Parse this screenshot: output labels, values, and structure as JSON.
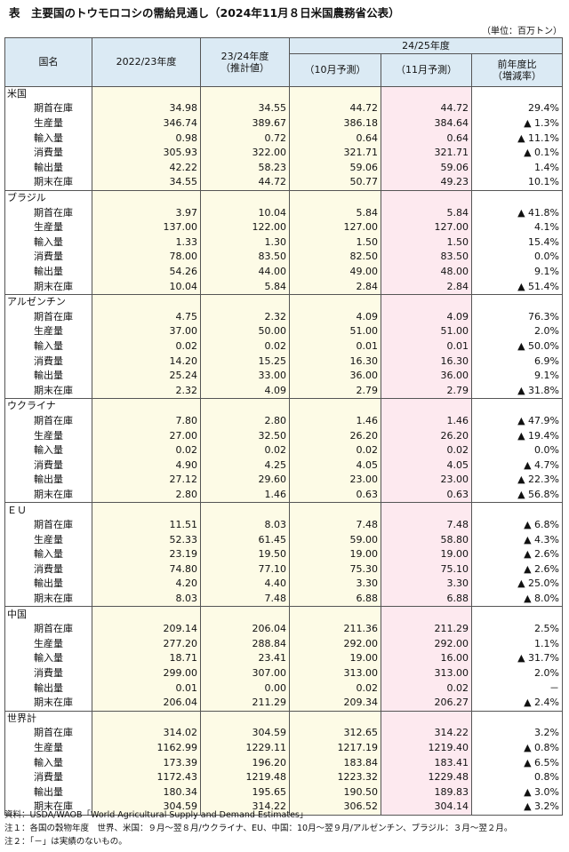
{
  "title": "表　主要国のトウモロコシの需給見通し（2024年11月８日米国農務省公表）",
  "unit": "（単位：百万トン）",
  "header": {
    "country": "国名",
    "y2223": "2022/23年度",
    "y2324": "23/24年度",
    "y2324_note": "（推計値）",
    "y2425": "24/25年度",
    "oct": "（10月予測）",
    "nov": "（11月予測）",
    "change": "前年度比",
    "change_note": "（増減率）"
  },
  "groups": [
    {
      "name": "米国",
      "rows": [
        [
          "期首在庫",
          "34.98",
          "34.55",
          "44.72",
          "44.72",
          "29.4%"
        ],
        [
          "生産量",
          "346.74",
          "389.67",
          "386.18",
          "384.64",
          "▲ 1.3%"
        ],
        [
          "輸入量",
          "0.98",
          "0.72",
          "0.64",
          "0.64",
          "▲ 11.1%"
        ],
        [
          "消費量",
          "305.93",
          "322.00",
          "321.71",
          "321.71",
          "▲ 0.1%"
        ],
        [
          "輸出量",
          "42.22",
          "58.23",
          "59.06",
          "59.06",
          "1.4%"
        ],
        [
          "期末在庫",
          "34.55",
          "44.72",
          "50.77",
          "49.23",
          "10.1%"
        ]
      ]
    },
    {
      "name": "ブラジル",
      "rows": [
        [
          "期首在庫",
          "3.97",
          "10.04",
          "5.84",
          "5.84",
          "▲ 41.8%"
        ],
        [
          "生産量",
          "137.00",
          "122.00",
          "127.00",
          "127.00",
          "4.1%"
        ],
        [
          "輸入量",
          "1.33",
          "1.30",
          "1.50",
          "1.50",
          "15.4%"
        ],
        [
          "消費量",
          "78.00",
          "83.50",
          "82.50",
          "83.50",
          "0.0%"
        ],
        [
          "輸出量",
          "54.26",
          "44.00",
          "49.00",
          "48.00",
          "9.1%"
        ],
        [
          "期末在庫",
          "10.04",
          "5.84",
          "2.84",
          "2.84",
          "▲ 51.4%"
        ]
      ]
    },
    {
      "name": "アルゼンチン",
      "rows": [
        [
          "期首在庫",
          "4.75",
          "2.32",
          "4.09",
          "4.09",
          "76.3%"
        ],
        [
          "生産量",
          "37.00",
          "50.00",
          "51.00",
          "51.00",
          "2.0%"
        ],
        [
          "輸入量",
          "0.02",
          "0.02",
          "0.01",
          "0.01",
          "▲ 50.0%"
        ],
        [
          "消費量",
          "14.20",
          "15.25",
          "16.30",
          "16.30",
          "6.9%"
        ],
        [
          "輸出量",
          "25.24",
          "33.00",
          "36.00",
          "36.00",
          "9.1%"
        ],
        [
          "期末在庫",
          "2.32",
          "4.09",
          "2.79",
          "2.79",
          "▲ 31.8%"
        ]
      ]
    },
    {
      "name": "ウクライナ",
      "rows": [
        [
          "期首在庫",
          "7.80",
          "2.80",
          "1.46",
          "1.46",
          "▲ 47.9%"
        ],
        [
          "生産量",
          "27.00",
          "32.50",
          "26.20",
          "26.20",
          "▲ 19.4%"
        ],
        [
          "輸入量",
          "0.02",
          "0.02",
          "0.02",
          "0.02",
          "0.0%"
        ],
        [
          "消費量",
          "4.90",
          "4.25",
          "4.05",
          "4.05",
          "▲ 4.7%"
        ],
        [
          "輸出量",
          "27.12",
          "29.60",
          "23.00",
          "23.00",
          "▲ 22.3%"
        ],
        [
          "期末在庫",
          "2.80",
          "1.46",
          "0.63",
          "0.63",
          "▲ 56.8%"
        ]
      ]
    },
    {
      "name": "ＥＵ",
      "rows": [
        [
          "期首在庫",
          "11.51",
          "8.03",
          "7.48",
          "7.48",
          "▲ 6.8%"
        ],
        [
          "生産量",
          "52.33",
          "61.45",
          "59.00",
          "58.80",
          "▲ 4.3%"
        ],
        [
          "輸入量",
          "23.19",
          "19.50",
          "19.00",
          "19.00",
          "▲ 2.6%"
        ],
        [
          "消費量",
          "74.80",
          "77.10",
          "75.30",
          "75.10",
          "▲ 2.6%"
        ],
        [
          "輸出量",
          "4.20",
          "4.40",
          "3.30",
          "3.30",
          "▲ 25.0%"
        ],
        [
          "期末在庫",
          "8.03",
          "7.48",
          "6.88",
          "6.88",
          "▲ 8.0%"
        ]
      ]
    },
    {
      "name": "中国",
      "rows": [
        [
          "期首在庫",
          "209.14",
          "206.04",
          "211.36",
          "211.29",
          "2.5%"
        ],
        [
          "生産量",
          "277.20",
          "288.84",
          "292.00",
          "292.00",
          "1.1%"
        ],
        [
          "輸入量",
          "18.71",
          "23.41",
          "19.00",
          "16.00",
          "▲ 31.7%"
        ],
        [
          "消費量",
          "299.00",
          "307.00",
          "313.00",
          "313.00",
          "2.0%"
        ],
        [
          "輸出量",
          "0.01",
          "0.00",
          "0.02",
          "0.02",
          "－"
        ],
        [
          "期末在庫",
          "206.04",
          "211.29",
          "209.34",
          "206.27",
          "▲ 2.4%"
        ]
      ]
    },
    {
      "name": "世界計",
      "rows": [
        [
          "期首在庫",
          "314.02",
          "304.59",
          "312.65",
          "314.22",
          "3.2%"
        ],
        [
          "生産量",
          "1162.99",
          "1229.11",
          "1217.19",
          "1219.40",
          "▲ 0.8%"
        ],
        [
          "輸入量",
          "173.39",
          "196.20",
          "183.84",
          "183.41",
          "▲ 6.5%"
        ],
        [
          "消費量",
          "1172.43",
          "1219.48",
          "1223.32",
          "1229.48",
          "0.8%"
        ],
        [
          "輸出量",
          "180.34",
          "195.65",
          "190.50",
          "189.83",
          "▲ 3.0%"
        ],
        [
          "期末在庫",
          "304.59",
          "314.22",
          "306.52",
          "304.14",
          "▲ 3.2%"
        ]
      ]
    }
  ],
  "notes": [
    "資料：USDA/WAOB「World Agricultural Supply and Demand Estimates」",
    "注１：各国の穀物年度　世界、米国：９月～翌８月/ウクライナ、EU、中国：10月～翌９月/アルゼンチン、ブラジル：３月～翌２月。",
    "注２：「－」は実績のないもの。"
  ]
}
